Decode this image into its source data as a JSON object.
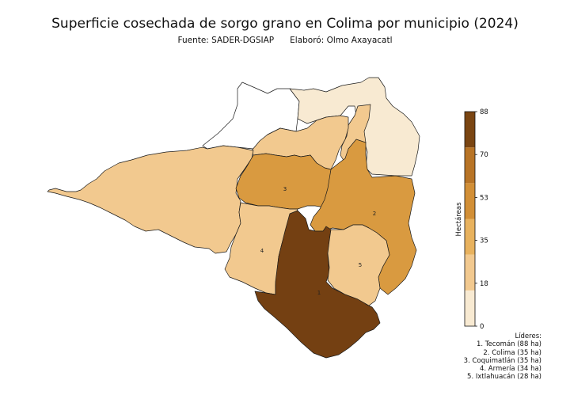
{
  "title": "Superficie cosechada de sorgo grano en Colima por municipio (2024)",
  "source": "Fuente: SADER-DGSIAP",
  "author": "Elaboró: Olmo Axayacatl",
  "colorbar": {
    "label": "Hectáreas",
    "ticks": [
      "0",
      "18",
      "35",
      "53",
      "70",
      "88"
    ],
    "colors": [
      "#f8ead2",
      "#f2c98f",
      "#e8b25e",
      "#d28f36",
      "#b87426",
      "#7a4512"
    ]
  },
  "map_labels": [
    "1",
    "2",
    "3",
    "4",
    "5"
  ],
  "leaders": {
    "heading": "Líderes:",
    "items": [
      "1. Tecomán (88 ha)",
      "2. Colima (35 ha)",
      "3. Coquimatlán (35 ha)",
      "4. Armería (34 ha)",
      "5. Ixtlahuacán (28 ha)"
    ]
  },
  "chart_data": {
    "type": "choropleth",
    "title": "Superficie cosechada de sorgo grano en Colima por municipio (2024)",
    "units": "ha",
    "range": [
      0,
      88
    ],
    "values": [
      {
        "rank": 1,
        "name": "Tecomán",
        "value": 88
      },
      {
        "rank": 2,
        "name": "Colima",
        "value": 35
      },
      {
        "rank": 3,
        "name": "Coquimatlán",
        "value": 35
      },
      {
        "rank": 4,
        "name": "Armería",
        "value": 34
      },
      {
        "rank": 5,
        "name": "Ixtlahuacán",
        "value": 28
      }
    ]
  }
}
